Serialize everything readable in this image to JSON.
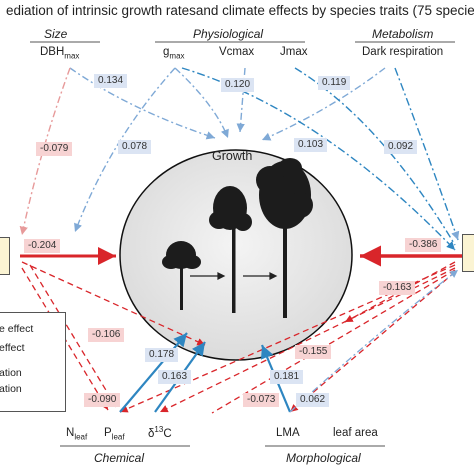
{
  "title": "ediation of intrinsic growth ratesand climate effects by species traits (75 specie",
  "categories": {
    "size": "Size",
    "physiological": "Physiological",
    "metabolism": "Metabolism",
    "chemical": "Chemical",
    "morphological": "Morphological"
  },
  "traits": {
    "dbh": "DBH",
    "dbh_sub": "max",
    "gmax": "g",
    "gmax_sub": "max",
    "vcmax": "Vcmax",
    "jmax": "Jmax",
    "dark_respiration": "Dark respiration",
    "nleaf": "N",
    "nleaf_sub": "leaf",
    "pleaf": "P",
    "pleaf_sub": "leaf",
    "d13c": "δ",
    "d13c_sup": "13",
    "d13c_tail": "C",
    "lma": "LMA",
    "leaf_area": "leaf area"
  },
  "center_label": "Growth",
  "coefficients": {
    "dbh_growth": "0.134",
    "gmax_growth": "0.120",
    "dark_growth": "0.119",
    "dbh_left": "-0.079",
    "gmax_left": "0.078",
    "jmax_right": "0.103",
    "dark_right": "0.092",
    "left_growth": "-0.204",
    "right_growth": "-0.386",
    "right_down": "-0.163",
    "left_nleaf": "-0.106",
    "left_pleaf": "-0.090",
    "pleaf_growth": "0.178",
    "d13c_growth": "0.163",
    "right_d13c": "-0.155",
    "lma_growth": "0.181",
    "right_lma": "-0.073",
    "lma_right": "0.062"
  },
  "legend": {
    "line1": "e effect",
    "line2": "effect",
    "line3": "ation",
    "line4": "ation"
  },
  "colors": {
    "blue": "#2e86c1",
    "red": "#d9252a",
    "tag_blue": "#dbe4f3",
    "tag_red": "#f7d3d3",
    "circle_fill": "#e9e9e9",
    "side_box": "#fbf4d3"
  }
}
